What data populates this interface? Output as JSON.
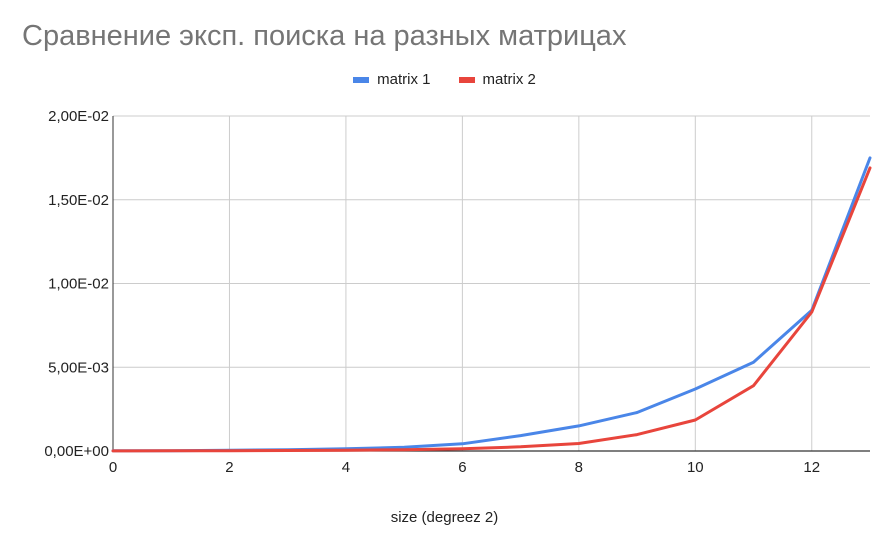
{
  "chart_data": {
    "type": "line",
    "title": "Сравнение эксп. поиска на разных матрицах",
    "xlabel": "size (degreez 2)",
    "ylabel": "",
    "x": [
      0,
      1,
      2,
      3,
      4,
      5,
      6,
      7,
      8,
      9,
      10,
      11,
      12,
      13
    ],
    "xlim": [
      0,
      13
    ],
    "ylim": [
      0,
      0.02
    ],
    "x_ticks": [
      0,
      2,
      4,
      6,
      8,
      10,
      12
    ],
    "x_tick_labels": [
      "0",
      "2",
      "4",
      "6",
      "8",
      "10",
      "12"
    ],
    "y_ticks": [
      0,
      0.005,
      0.01,
      0.015,
      0.02
    ],
    "y_tick_labels": [
      "0,00E+00",
      "5,00E-03",
      "1,00E-02",
      "1,50E-02",
      "2,00E-02"
    ],
    "grid": true,
    "legend_position": "top",
    "series": [
      {
        "name": "matrix 1",
        "color": "#4a86e8",
        "values": [
          1e-05,
          2e-05,
          4e-05,
          8e-05,
          0.00013,
          0.00022,
          0.00043,
          0.00092,
          0.0015,
          0.0023,
          0.0037,
          0.0053,
          0.0084,
          0.0175
        ]
      },
      {
        "name": "matrix 2",
        "color": "#e8453c",
        "values": [
          5e-06,
          1e-05,
          2e-05,
          3e-05,
          5e-05,
          8e-05,
          0.00013,
          0.00025,
          0.00045,
          0.00098,
          0.00185,
          0.0039,
          0.0083,
          0.0169
        ]
      }
    ]
  }
}
